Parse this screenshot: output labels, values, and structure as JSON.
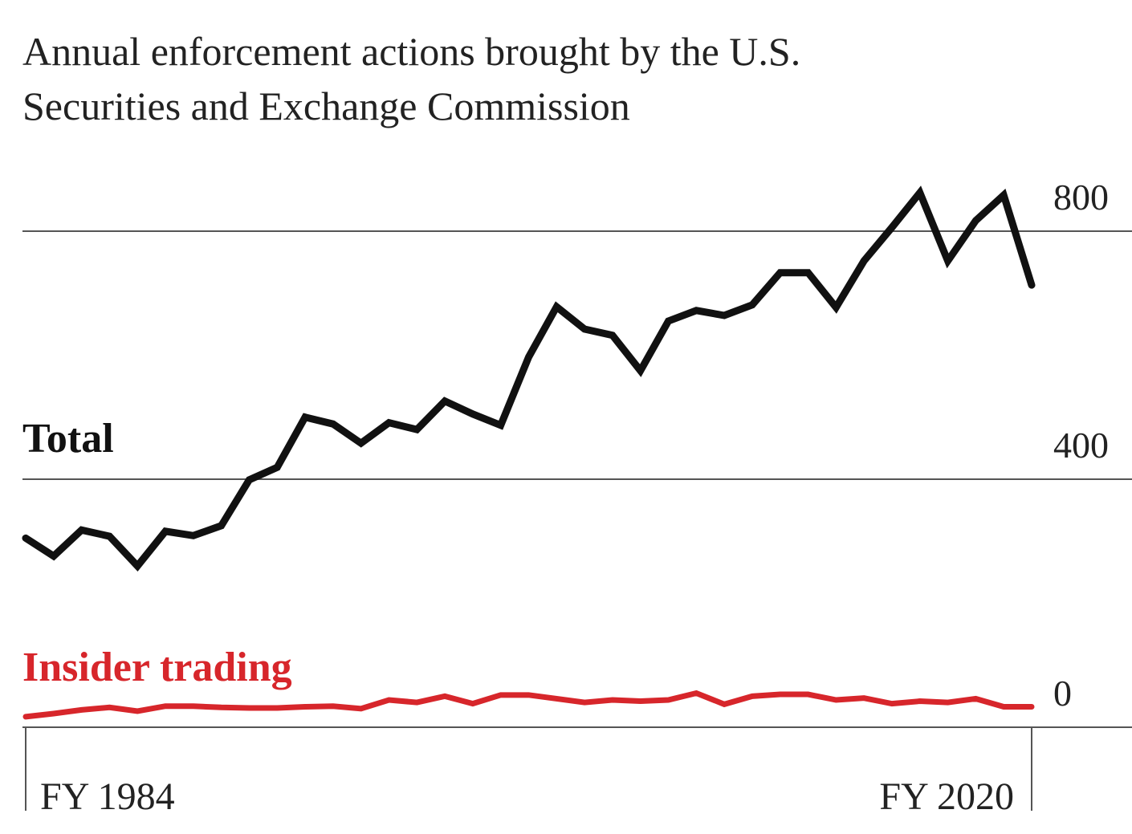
{
  "chart_data": {
    "type": "line",
    "title": "Annual enforcement actions brought by the U.S. Securities and Exchange Commission",
    "categories": [
      "FY 1984",
      null,
      null,
      null,
      null,
      null,
      null,
      null,
      null,
      null,
      null,
      null,
      null,
      null,
      null,
      null,
      null,
      null,
      null,
      null,
      null,
      null,
      null,
      null,
      null,
      null,
      null,
      null,
      null,
      null,
      null,
      null,
      null,
      null,
      null,
      null,
      "FY 2020"
    ],
    "series": [
      {
        "name": "Total",
        "color": "#111111",
        "values": [
          305,
          276,
          318,
          308,
          260,
          316,
          309,
          325,
          399,
          419,
          500,
          489,
          458,
          491,
          480,
          526,
          505,
          487,
          597,
          678,
          642,
          632,
          575,
          655,
          672,
          664,
          681,
          733,
          733,
          677,
          752,
          806,
          862,
          752,
          817,
          858,
          713
        ]
      },
      {
        "name": "Insider trading",
        "color": "#d7262b",
        "values": [
          17,
          22,
          28,
          32,
          26,
          34,
          34,
          32,
          31,
          31,
          33,
          34,
          30,
          44,
          40,
          50,
          38,
          52,
          52,
          46,
          40,
          44,
          42,
          44,
          55,
          37,
          50,
          53,
          53,
          44,
          47,
          38,
          42,
          40,
          46,
          33,
          33
        ]
      }
    ],
    "ylim": [
      0,
      875
    ],
    "yticks": [
      0,
      400,
      800
    ],
    "grid": true
  }
}
